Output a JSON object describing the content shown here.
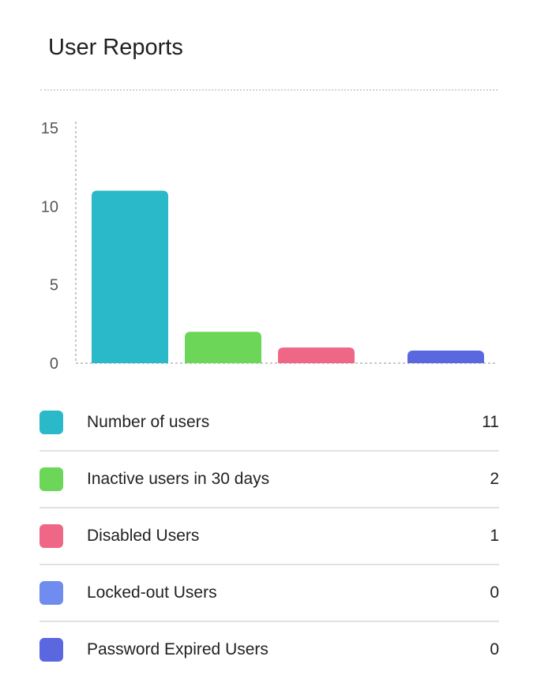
{
  "card": {
    "title": "User Reports"
  },
  "chart_data": {
    "type": "bar",
    "title": "User Reports",
    "xlabel": "",
    "ylabel": "",
    "ylim": [
      0,
      15
    ],
    "yticks": [
      0,
      5,
      10,
      15
    ],
    "grid": false,
    "categories": [
      "Number of users",
      "Inactive users in 30 days",
      "Disabled Users",
      "Locked-out Users",
      "Password Expired Users"
    ],
    "values": [
      11,
      2,
      1,
      0,
      0
    ],
    "colors": [
      "#2ab9c8",
      "#6bd658",
      "#ee6787",
      "#6f8cee",
      "#5a67df"
    ],
    "legend_position": "bottom"
  },
  "legend": {
    "items": [
      {
        "label": "Number of users",
        "value": "11",
        "color": "#2ab9c8"
      },
      {
        "label": "Inactive users in 30 days",
        "value": "2",
        "color": "#6bd658"
      },
      {
        "label": "Disabled Users",
        "value": "1",
        "color": "#ee6787"
      },
      {
        "label": "Locked-out Users",
        "value": "0",
        "color": "#6f8cee"
      },
      {
        "label": "Password Expired Users",
        "value": "0",
        "color": "#5a67df"
      }
    ]
  }
}
